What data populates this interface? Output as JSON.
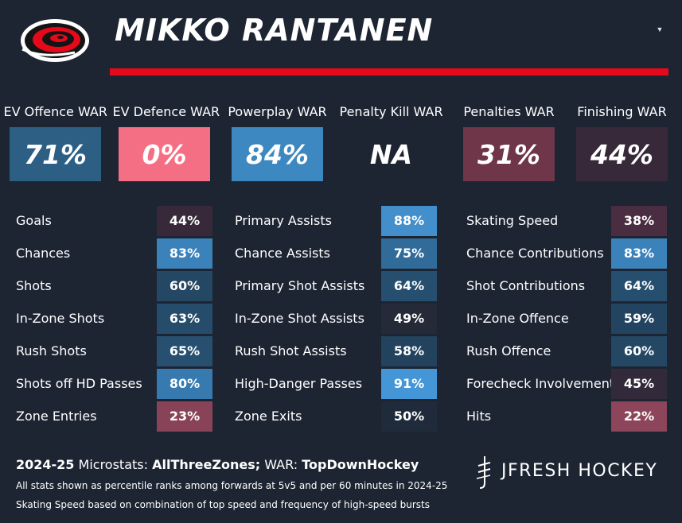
{
  "header": {
    "player_name": "MIKKO RANTANEN",
    "team_logo": "hurricanes-logo-icon",
    "accent_color": "#e5091b"
  },
  "war": [
    {
      "label": "EV Offence WAR",
      "value": "71%",
      "color": "#2d5f85"
    },
    {
      "label": "EV Defence WAR",
      "value": "0%",
      "color": "#f56f84"
    },
    {
      "label": "Powerplay WAR",
      "value": "84%",
      "color": "#3d88c0"
    },
    {
      "label": "Penalty Kill WAR",
      "value": "NA",
      "color": ""
    },
    {
      "label": "Penalties WAR",
      "value": "31%",
      "color": "#6e3648"
    },
    {
      "label": "Finishing WAR",
      "value": "44%",
      "color": "#37293a"
    }
  ],
  "stats": {
    "col1": [
      {
        "label": "Goals",
        "value": "44%",
        "color": "#37293a"
      },
      {
        "label": "Chances",
        "value": "83%",
        "color": "#3b82bb"
      },
      {
        "label": "Shots",
        "value": "60%",
        "color": "#244764"
      },
      {
        "label": "In-Zone Shots",
        "value": "63%",
        "color": "#254c6b"
      },
      {
        "label": "Rush Shots",
        "value": "65%",
        "color": "#275070"
      },
      {
        "label": "Shots off HD Passes",
        "value": "80%",
        "color": "#367aaf"
      },
      {
        "label": "Zone Entries",
        "value": "23%",
        "color": "#894359"
      }
    ],
    "col2": [
      {
        "label": "Primary Assists",
        "value": "88%",
        "color": "#428fcb"
      },
      {
        "label": "Chance Assists",
        "value": "75%",
        "color": "#306b99"
      },
      {
        "label": "Primary Shot Assists",
        "value": "64%",
        "color": "#264e6e"
      },
      {
        "label": "In-Zone Shot Assists",
        "value": "49%",
        "color": "#252a39"
      },
      {
        "label": "Rush Shot Assists",
        "value": "58%",
        "color": "#22425d"
      },
      {
        "label": "High-Danger Passes",
        "value": "91%",
        "color": "#4496d6"
      },
      {
        "label": "Zone Exits",
        "value": "50%",
        "color": "#1f2b3b"
      }
    ],
    "col3": [
      {
        "label": "Skating Speed",
        "value": "38%",
        "color": "#4a2d40"
      },
      {
        "label": "Chance Contributions",
        "value": "83%",
        "color": "#3b82bb"
      },
      {
        "label": "Shot Contributions",
        "value": "64%",
        "color": "#264e6e"
      },
      {
        "label": "In-Zone Offence",
        "value": "59%",
        "color": "#234460"
      },
      {
        "label": "Rush Offence",
        "value": "60%",
        "color": "#244764"
      },
      {
        "label": "Forecheck Involvement",
        "value": "45%",
        "color": "#322a3a"
      },
      {
        "label": "Hits",
        "value": "22%",
        "color": "#8d455b"
      }
    ]
  },
  "footer": {
    "season": "2024-25",
    "microstats_prefix": "Microstats:",
    "microstats_source": "AllThreeZones;",
    "war_prefix": "WAR:",
    "war_source": "TopDownHockey",
    "note1": "All stats shown as percentile ranks among forwards at 5v5 and per 60 minutes in 2024-25",
    "note2": "Skating Speed based on combination of top speed and frequency of high-speed bursts",
    "brand": "JFRESH HOCKEY",
    "brand_logo": "jfresh-logo-icon"
  }
}
